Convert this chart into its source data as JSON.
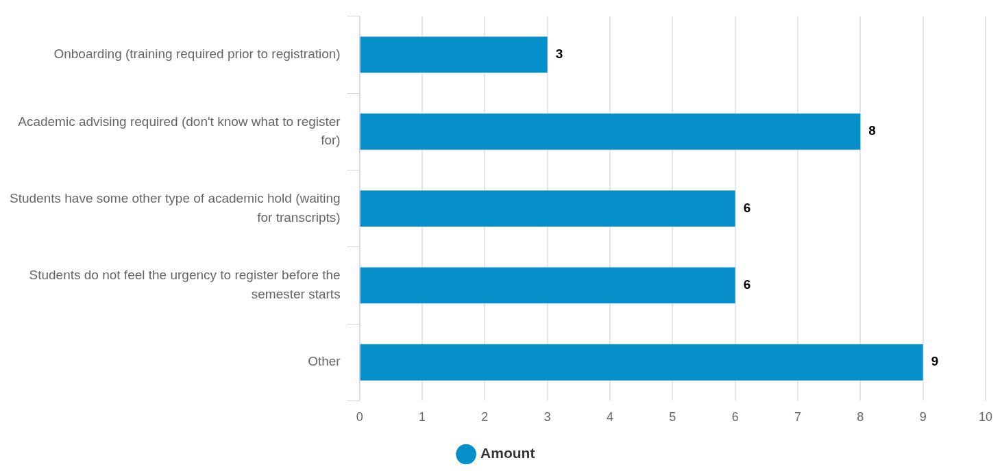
{
  "chart_data": {
    "type": "bar",
    "orientation": "horizontal",
    "categories": [
      "Onboarding (training required prior to registration)",
      "Academic advising required (don't know what to register for)",
      "Students have some other type of academic hold (waiting for transcripts)",
      "Students do not feel the urgency to register before the semester starts",
      "Other"
    ],
    "series": [
      {
        "name": "Amount",
        "color": "#068fc9",
        "values": [
          3,
          8,
          6,
          6,
          9
        ]
      }
    ],
    "xlim": [
      0,
      10
    ],
    "xticks": [
      0,
      1,
      2,
      3,
      4,
      5,
      6,
      7,
      8,
      9,
      10
    ],
    "grid": "x",
    "legend": "bottom",
    "data_labels": true
  }
}
